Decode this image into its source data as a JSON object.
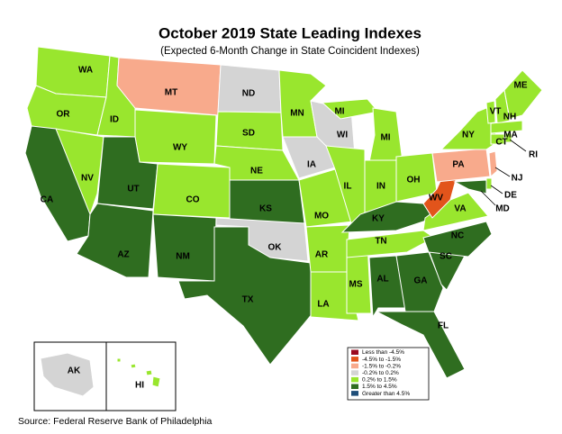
{
  "header": {
    "title": "October 2019 State Leading Indexes",
    "subtitle": "(Expected 6-Month Change in State Coincident Indexes)"
  },
  "legend": [
    {
      "label": "Less than -4.5%",
      "color": "#9b0a1e"
    },
    {
      "label": "-4.5% to -1.5%",
      "color": "#e2541b"
    },
    {
      "label": "-1.5% to -0.2%",
      "color": "#f8aa8c"
    },
    {
      "label": "-0.2% to 0.2%",
      "color": "#d4d4d4"
    },
    {
      "label": "0.2% to 1.5%",
      "color": "#99e62e"
    },
    {
      "label": "1.5% to 4.5%",
      "color": "#2f6d20"
    },
    {
      "label": "Greater than 4.5%",
      "color": "#1f4e79"
    }
  ],
  "states": [
    {
      "label": "WA",
      "legend_index": 4
    },
    {
      "label": "OR",
      "legend_index": 4
    },
    {
      "label": "ID",
      "legend_index": 4
    },
    {
      "label": "MT",
      "legend_index": 2
    },
    {
      "label": "ND",
      "legend_index": 3
    },
    {
      "label": "SD",
      "legend_index": 4
    },
    {
      "label": "MN",
      "legend_index": 4
    },
    {
      "label": "WY",
      "legend_index": 4
    },
    {
      "label": "NV",
      "legend_index": 4
    },
    {
      "label": "CA",
      "legend_index": 5
    },
    {
      "label": "UT",
      "legend_index": 5
    },
    {
      "label": "CO",
      "legend_index": 4
    },
    {
      "label": "NE",
      "legend_index": 4
    },
    {
      "label": "KS",
      "legend_index": 5
    },
    {
      "label": "AZ",
      "legend_index": 5
    },
    {
      "label": "NM",
      "legend_index": 5
    },
    {
      "label": "OK",
      "legend_index": 3
    },
    {
      "label": "TX",
      "legend_index": 5
    },
    {
      "label": "IA",
      "legend_index": 3
    },
    {
      "label": "MO",
      "legend_index": 4
    },
    {
      "label": "AR",
      "legend_index": 4
    },
    {
      "label": "LA",
      "legend_index": 4
    },
    {
      "label": "WI",
      "legend_index": 3
    },
    {
      "label": "IL",
      "legend_index": 4
    },
    {
      "label": "MS",
      "legend_index": 4
    },
    {
      "label": "MI",
      "legend_index": 4
    },
    {
      "label": "IN",
      "legend_index": 4
    },
    {
      "label": "OH",
      "legend_index": 4
    },
    {
      "label": "KY",
      "legend_index": 5
    },
    {
      "label": "TN",
      "legend_index": 4
    },
    {
      "label": "AL",
      "legend_index": 5
    },
    {
      "label": "GA",
      "legend_index": 5
    },
    {
      "label": "FL",
      "legend_index": 5
    },
    {
      "label": "SC",
      "legend_index": 5
    },
    {
      "label": "NC",
      "legend_index": 5
    },
    {
      "label": "VA",
      "legend_index": 4
    },
    {
      "label": "WV",
      "legend_index": 1
    },
    {
      "label": "PA",
      "legend_index": 2
    },
    {
      "label": "NY",
      "legend_index": 4
    },
    {
      "label": "VT",
      "legend_index": 4
    },
    {
      "label": "NH",
      "legend_index": 4
    },
    {
      "label": "ME",
      "legend_index": 4
    },
    {
      "label": "MA",
      "legend_index": 4
    },
    {
      "label": "CT",
      "legend_index": 4
    },
    {
      "label": "RI",
      "legend_index": 4
    },
    {
      "label": "NJ",
      "legend_index": 2
    },
    {
      "label": "DE",
      "legend_index": 4
    },
    {
      "label": "MD",
      "legend_index": 5
    },
    {
      "label": "AK",
      "legend_index": 3
    },
    {
      "label": "HI",
      "legend_index": 4
    }
  ],
  "source": "Source: Federal Reserve Bank of Philadelphia"
}
